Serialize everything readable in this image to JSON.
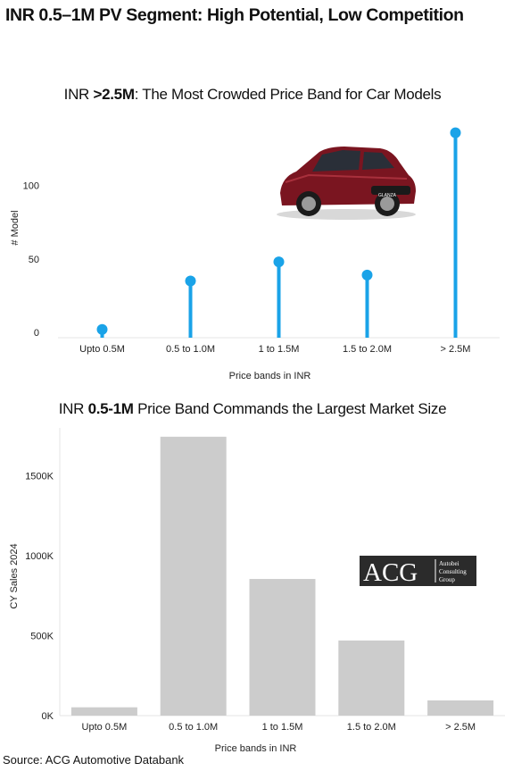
{
  "page_title": "INR 0.5–1M PV Segment: High Potential, Low Competition",
  "source": "Source: ACG Automotive Databank",
  "logo": {
    "mark": "ACG",
    "line1": "Autobei",
    "line2": "Consulting",
    "line3": "Group"
  },
  "colors": {
    "lollipop": "#1aa3e8",
    "bar": "#cccccc",
    "axis": "#e6e6e6"
  },
  "chart_data": [
    {
      "type": "scatter",
      "title_plain1": "INR ",
      "title_bold": ">2.5M",
      "title_plain2": ": The Most Crowded Price Band for Car Models",
      "categories": [
        "Upto 0.5M",
        "0.5 to 1.0M",
        "1 to 1.5M",
        "1.5 to 2.0M",
        "> 2.5M"
      ],
      "values": [
        2,
        35,
        48,
        39,
        136
      ],
      "xlabel": "Price bands in INR",
      "ylabel": "# Model",
      "yticks": [
        0,
        50,
        100
      ],
      "ylim": [
        0,
        140
      ],
      "grid": false,
      "style": "lollipop"
    },
    {
      "type": "bar",
      "title_plain1": "INR ",
      "title_bold": "0.5-1M",
      "title_plain2": " Price Band Commands the Largest Market Size",
      "categories": [
        "Upto 0.5M",
        "0.5 to 1.0M",
        "1 to 1.5M",
        "1.5 to 2.0M",
        "> 2.5M"
      ],
      "values": [
        52000,
        1745000,
        855000,
        470000,
        95000
      ],
      "xlabel": "Price bands in INR",
      "ylabel": "CY Sales 2024",
      "yticks": [
        0,
        500000,
        1000000,
        1500000
      ],
      "ytick_labels": [
        "0K",
        "500K",
        "1000K",
        "1500K"
      ],
      "ylim": [
        0,
        1800000
      ],
      "grid": false
    }
  ]
}
